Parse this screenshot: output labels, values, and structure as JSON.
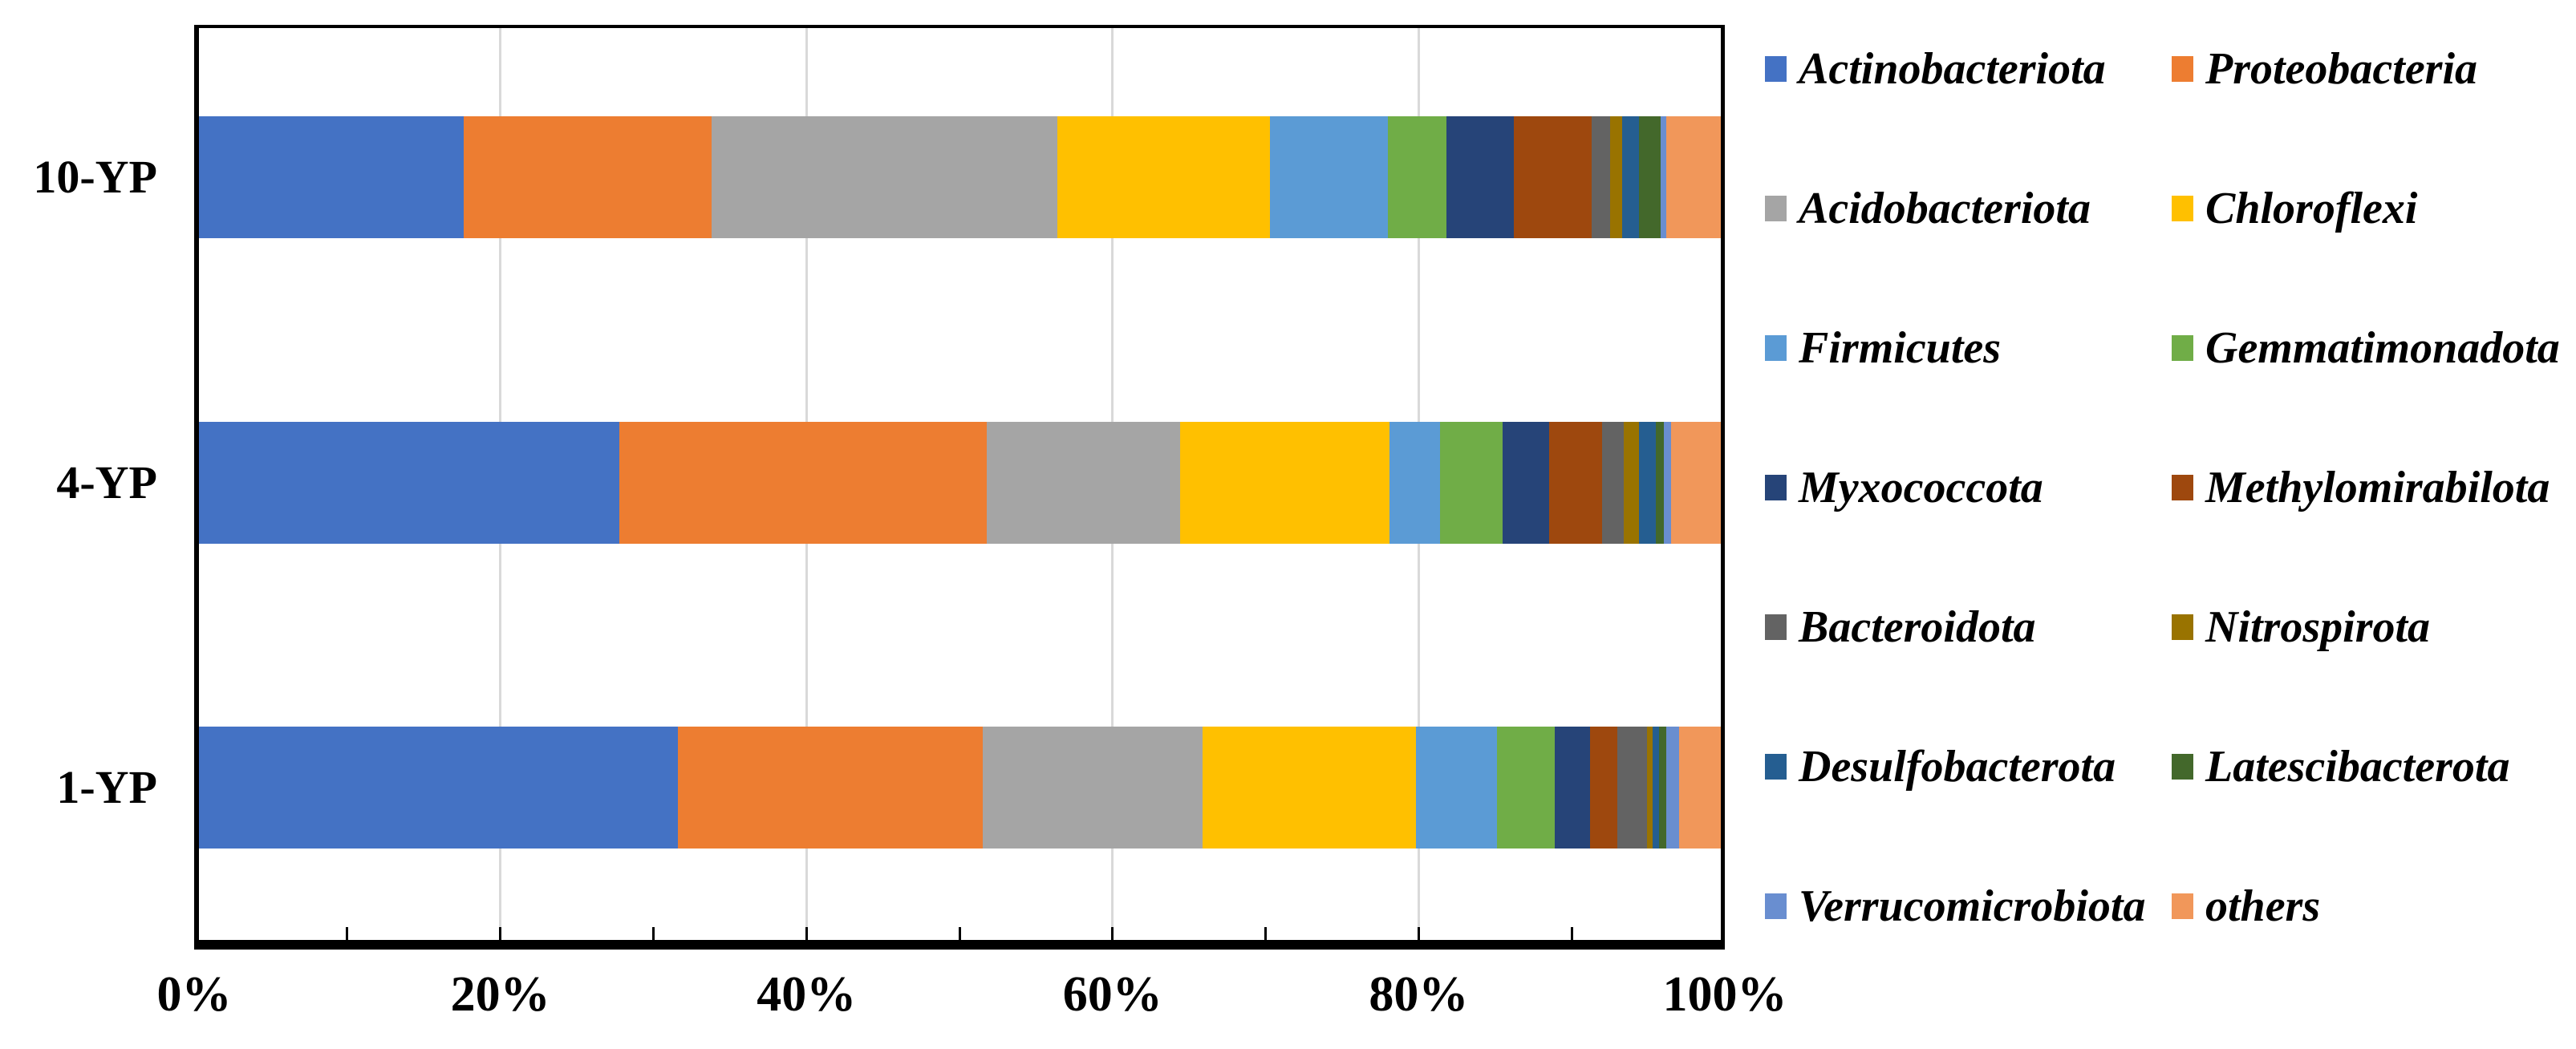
{
  "chart_data": {
    "type": "bar",
    "orientation": "horizontal-stacked",
    "title": "",
    "xlabel": "",
    "ylabel": "",
    "xlim": [
      0,
      100
    ],
    "grid": "vertical-major",
    "categories": [
      "10-YP",
      "4-YP",
      "1-YP"
    ],
    "series": [
      {
        "name": "Actinobacteriota",
        "color": "#4472C4",
        "values": [
          17.6,
          27.8,
          31.6
        ]
      },
      {
        "name": "Proteobacteria",
        "color": "#ED7D31",
        "values": [
          16.2,
          24.0,
          19.9
        ]
      },
      {
        "name": "Acidobacteriota",
        "color": "#A5A5A5",
        "values": [
          22.6,
          12.6,
          14.4
        ]
      },
      {
        "name": "Chloroflexi",
        "color": "#FFC000",
        "values": [
          13.9,
          13.7,
          13.9
        ]
      },
      {
        "name": "Firmicutes",
        "color": "#5B9BD5",
        "values": [
          7.7,
          3.3,
          5.3
        ]
      },
      {
        "name": "Gemmatimonadota",
        "color": "#70AD47",
        "values": [
          3.8,
          4.1,
          3.8
        ]
      },
      {
        "name": "Myxococcota",
        "color": "#264478",
        "values": [
          4.4,
          3.0,
          2.3
        ]
      },
      {
        "name": "Methylomirabilota",
        "color": "#9E480E",
        "values": [
          5.1,
          3.5,
          1.8
        ]
      },
      {
        "name": "Bacteroidota",
        "color": "#636363",
        "values": [
          1.2,
          1.4,
          1.9
        ]
      },
      {
        "name": "Nitrospirota",
        "color": "#997300",
        "values": [
          0.8,
          1.0,
          0.4
        ]
      },
      {
        "name": "Desulfobacterota",
        "color": "#255E91",
        "values": [
          1.1,
          1.1,
          0.4
        ]
      },
      {
        "name": "Latescibacterota",
        "color": "#43682B",
        "values": [
          1.4,
          0.5,
          0.5
        ]
      },
      {
        "name": "Verrucomicrobiota",
        "color": "#698ED0",
        "values": [
          0.4,
          0.5,
          0.8
        ]
      },
      {
        "name": "others",
        "color": "#F1975A",
        "values": [
          3.8,
          3.5,
          3.0
        ]
      }
    ],
    "x_axis": {
      "tick_labels": [
        "0%",
        "20%",
        "40%",
        "60%",
        "80%",
        "100%"
      ],
      "major_ticks_pct": [
        0,
        20,
        40,
        60,
        80,
        100
      ],
      "minor_tick_step_pct": 10,
      "gridlines_pct": [
        20,
        40,
        60,
        80
      ]
    },
    "legend": {
      "position": "right",
      "columns": 2,
      "marker": "square",
      "entries": [
        "Actinobacteriota",
        "Proteobacteria",
        "Acidobacteriota",
        "Chloroflexi",
        "Firmicutes",
        "Gemmatimonadota",
        "Myxococcota",
        "Methylomirabilota",
        "Bacteroidota",
        "Nitrospirota",
        "Desulfobacterota",
        "Latescibacterota",
        "Verrucomicrobiota",
        "others"
      ]
    },
    "colors": {
      "gridline": "#D9D9D9",
      "axis": "#000000",
      "text": "#000000",
      "background": "#FFFFFF"
    }
  }
}
